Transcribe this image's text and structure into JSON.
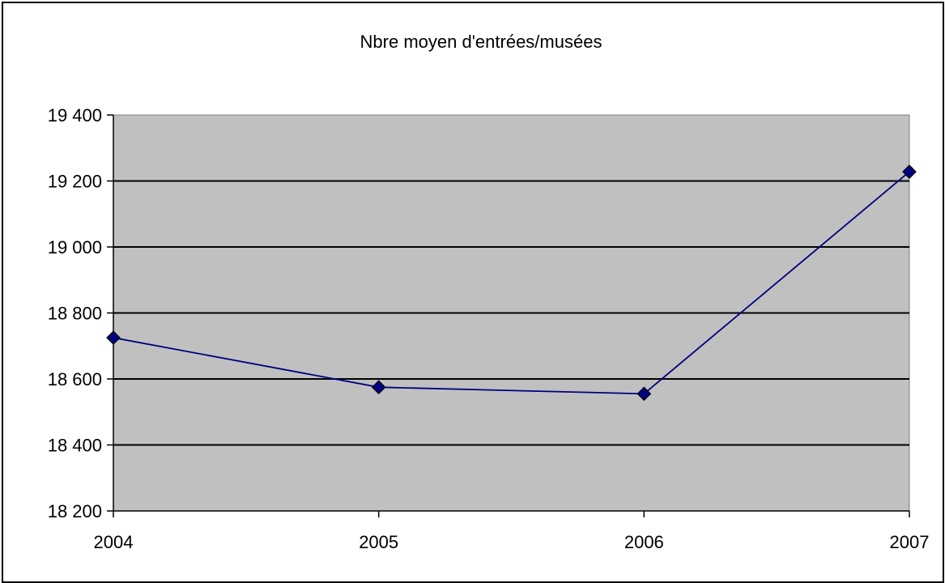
{
  "chart_data": {
    "type": "line",
    "title": "Nbre moyen d'entrées/musées",
    "xlabel": "",
    "ylabel": "",
    "categories": [
      "2004",
      "2005",
      "2006",
      "2007"
    ],
    "series": [
      {
        "values": [
          18725,
          18575,
          18555,
          19228
        ]
      }
    ],
    "ylim": [
      18200,
      19400
    ],
    "yticks": [
      18200,
      18400,
      18600,
      18800,
      19000,
      19200,
      19400
    ],
    "ytick_labels": [
      "18 200",
      "18 400",
      "18 600",
      "18 800",
      "19 000",
      "19 200",
      "19 400"
    ],
    "grid": true,
    "legend": "none",
    "colors": {
      "plot_background": "#c0c0c0",
      "line": "#000080",
      "marker": "#000080",
      "gridline": "#000000",
      "border": "#000000"
    }
  }
}
